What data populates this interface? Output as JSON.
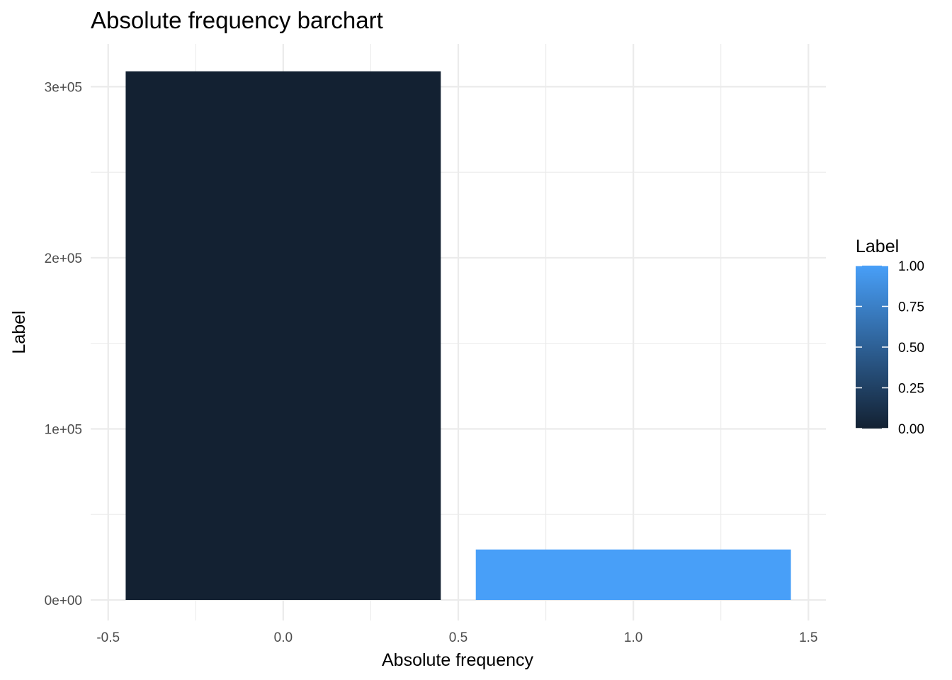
{
  "chart_data": {
    "type": "bar",
    "title": "Absolute frequency barchart",
    "xlabel": "Absolute frequency",
    "ylabel": "Label",
    "x": [
      0,
      1
    ],
    "values": [
      309000,
      29500
    ],
    "bar_colors": [
      "#132132",
      "#489FF8"
    ],
    "bar_width": 0.9,
    "xlim": [
      -0.55,
      1.55
    ],
    "ylim": [
      -12000,
      325000
    ],
    "x_ticks": [
      -0.5,
      0.0,
      0.5,
      1.0,
      1.5
    ],
    "x_tick_labels": [
      "-0.5",
      "0.0",
      "0.5",
      "1.0",
      "1.5"
    ],
    "x_minor_ticks": [
      -0.25,
      0.25,
      0.75,
      1.25
    ],
    "y_ticks": [
      0,
      100000,
      200000,
      300000
    ],
    "y_tick_labels": [
      "0e+00",
      "1e+05",
      "2e+05",
      "3e+05"
    ],
    "y_minor_ticks": [
      50000,
      150000,
      250000
    ],
    "grid": true,
    "legend": {
      "title": "Label",
      "type": "colorbar",
      "position": "right",
      "low_color": "#132132",
      "high_color": "#489FF8",
      "range": [
        0,
        1
      ],
      "ticks": [
        0,
        0.25,
        0.5,
        0.75,
        1
      ],
      "tick_labels": [
        "0.00",
        "0.25",
        "0.50",
        "0.75",
        "1.00"
      ]
    }
  }
}
